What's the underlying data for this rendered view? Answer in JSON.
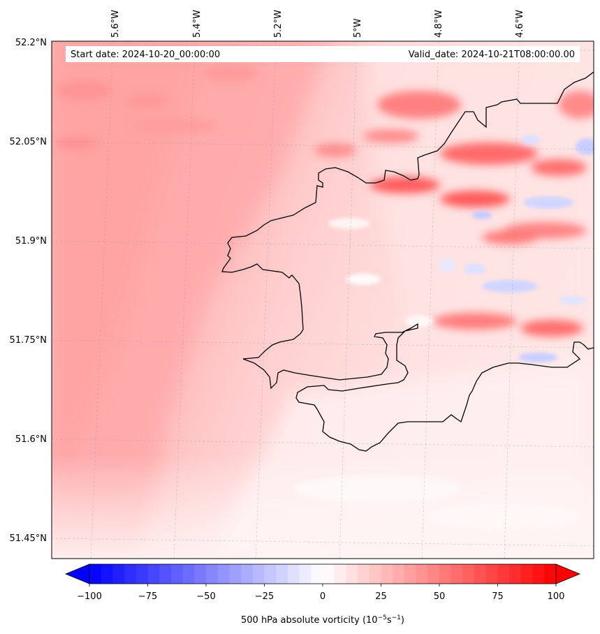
{
  "header": {
    "start_date": "Start date: 2024-10-20_00:00:00",
    "valid_date": "Valid_date: 2024-10-21T08:00:00.00"
  },
  "map": {
    "longitude_labels": [
      "5.6°W",
      "5.4°W",
      "5.2°W",
      "5°W",
      "4.8°W",
      "4.6°W"
    ],
    "latitude_labels": [
      "52.2°N",
      "52.05°N",
      "51.9°N",
      "51.75°N",
      "51.6°N",
      "51.45°N"
    ]
  },
  "colorbar": {
    "label": "500 hPa absolute vorticity (10",
    "label_exp1": "−5",
    "label_mid": "s",
    "label_exp2": "−1",
    "label_end": ")",
    "ticks": [
      "−100",
      "−75",
      "−50",
      "−25",
      "0",
      "25",
      "50",
      "75",
      "100"
    ],
    "tick_values": [
      -100,
      -75,
      -50,
      -25,
      0,
      25,
      50,
      75,
      100
    ],
    "min": -100,
    "max": 100,
    "step": 5,
    "colormap": "bwr",
    "extend": "both"
  },
  "colors": {
    "land_outline": "#000000",
    "background": "#ffc0c0",
    "negative": "#0000ff",
    "positive": "#ff0000"
  }
}
